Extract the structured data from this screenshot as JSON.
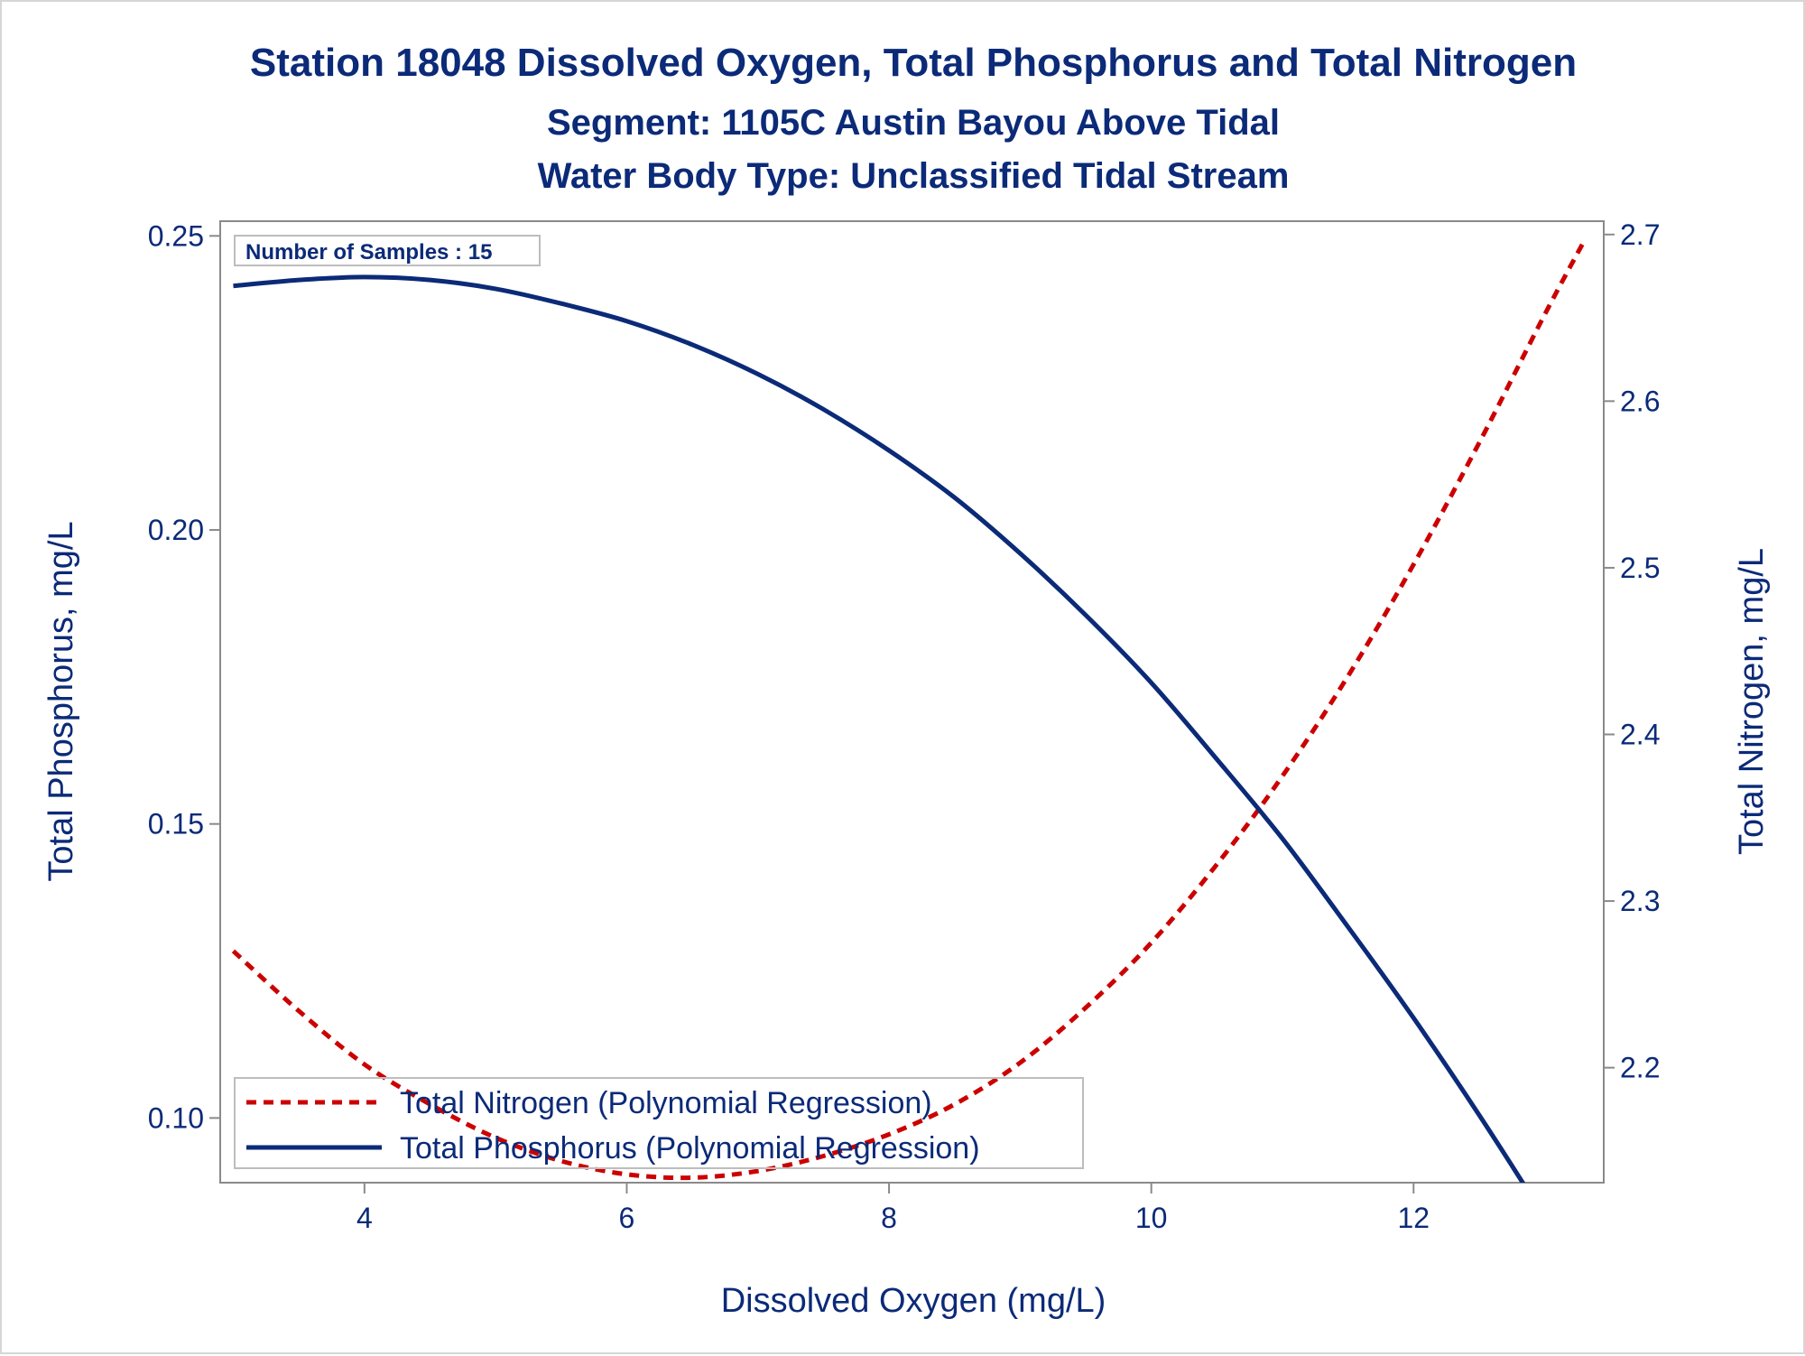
{
  "chart_data": {
    "type": "line",
    "title": "Station 18048  Dissolved Oxygen, Total Phosphorus and Total Nitrogen",
    "subtitle": "Segment: 1105C  Austin Bayou Above Tidal",
    "subtitle2": "Water Body Type: Unclassified Tidal Stream",
    "xlabel": "Dissolved Oxygen (mg/L)",
    "ylabel_left": "Total Phosphorus, mg/L",
    "ylabel_right": "Total Nitrogen, mg/L",
    "xlim": [
      2.9,
      13.45
    ],
    "ylim_left": [
      0.089,
      0.2525
    ],
    "ylim_right": [
      2.131,
      2.708
    ],
    "x_ticks": [
      4,
      6,
      8,
      10,
      12
    ],
    "y_left_ticks": [
      "0.10",
      "0.15",
      "0.20",
      "0.25"
    ],
    "y_right_ticks": [
      "2.2",
      "2.3",
      "2.4",
      "2.5",
      "2.6",
      "2.7"
    ],
    "grid": false,
    "inset_label": "Number of Samples : 15",
    "legend_placement": "bottom-left",
    "series": [
      {
        "name": "Total Nitrogen (Polynomial Regression)",
        "axis": "right",
        "color": "#cc0000",
        "style": "dashed",
        "x": [
          3.0,
          3.5,
          4.0,
          4.5,
          5.0,
          5.5,
          6.0,
          6.5,
          7.0,
          7.5,
          8.0,
          8.5,
          9.0,
          9.5,
          10.0,
          10.5,
          11.0,
          11.5,
          12.0,
          12.5,
          13.0,
          13.3
        ],
        "y": [
          2.27,
          2.234,
          2.202,
          2.178,
          2.158,
          2.144,
          2.136,
          2.134,
          2.138,
          2.147,
          2.16,
          2.178,
          2.203,
          2.236,
          2.275,
          2.322,
          2.375,
          2.435,
          2.502,
          2.575,
          2.652,
          2.696
        ]
      },
      {
        "name": "Total Phosphorus (Polynomial Regression)",
        "axis": "left",
        "color": "#0b2a78",
        "style": "solid",
        "x": [
          3.0,
          3.5,
          4.0,
          4.5,
          5.0,
          5.5,
          6.0,
          6.5,
          7.0,
          7.5,
          8.0,
          8.5,
          9.0,
          9.5,
          10.0,
          10.5,
          11.0,
          11.5,
          12.0,
          12.5,
          13.0,
          13.3
        ],
        "y": [
          0.2415,
          0.2425,
          0.243,
          0.2425,
          0.241,
          0.2385,
          0.2355,
          0.2315,
          0.2265,
          0.2205,
          0.2135,
          0.2055,
          0.196,
          0.1855,
          0.174,
          0.161,
          0.1475,
          0.1325,
          0.117,
          0.1005,
          0.083,
          0.0715
        ]
      }
    ]
  }
}
